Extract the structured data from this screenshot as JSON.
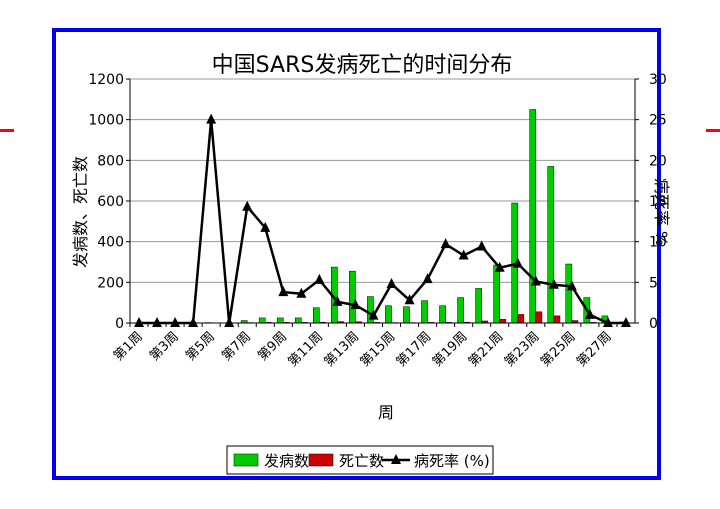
{
  "chart_data": {
    "type": "bar",
    "title": "中国SARS发病死亡的时间分布",
    "xlabel": "周",
    "ylabel": "发病数、死亡数",
    "y2label": "病死率 %",
    "ylim": [
      0,
      1200
    ],
    "y2lim": [
      0,
      30
    ],
    "yticks": [
      "0",
      "200",
      "400",
      "600",
      "800",
      "1000",
      "1200"
    ],
    "y2ticks": [
      "0",
      "5",
      "10",
      "15",
      "20",
      "25",
      "30"
    ],
    "categories": [
      "第1周",
      "第2周",
      "第3周",
      "第4周",
      "第5周",
      "第6周",
      "第7周",
      "第8周",
      "第9周",
      "第10周",
      "第11周",
      "第12周",
      "第13周",
      "第14周",
      "第15周",
      "第16周",
      "第17周",
      "第18周",
      "第19周",
      "第20周",
      "第21周",
      "第22周",
      "第23周",
      "第24周",
      "第25周",
      "第26周",
      "第27周",
      "第28周"
    ],
    "xtick_labels": [
      "第1周",
      "第3周",
      "第5周",
      "第7周",
      "第9周",
      "第11周",
      "第13周",
      "第15周",
      "第17周",
      "第19周",
      "第21周",
      "第23周",
      "第25周",
      "第27周"
    ],
    "series": [
      {
        "name": "发病数",
        "kind": "bar",
        "color": "#00cc00",
        "axis": "left",
        "values": [
          0,
          0,
          0,
          0,
          2,
          0,
          12,
          25,
          25,
          25,
          75,
          275,
          255,
          130,
          85,
          80,
          110,
          85,
          125,
          170,
          285,
          590,
          1050,
          770,
          290,
          125,
          35,
          5
        ]
      },
      {
        "name": "死亡数",
        "kind": "bar",
        "color": "#cc0000",
        "axis": "left",
        "values": [
          0,
          0,
          0,
          0,
          1,
          0,
          2,
          3,
          3,
          3,
          4,
          7,
          6,
          3,
          2,
          2,
          3,
          3,
          4,
          10,
          18,
          42,
          55,
          35,
          12,
          3,
          1,
          0
        ]
      },
      {
        "name": "病死率 (%)",
        "kind": "line",
        "color": "#000000",
        "axis": "right",
        "values": [
          0,
          0,
          0,
          0,
          25,
          0,
          14.3,
          11.7,
          3.8,
          3.6,
          5.3,
          2.6,
          2.2,
          0.9,
          4.8,
          2.8,
          5.4,
          9.7,
          8.3,
          9.4,
          6.8,
          7.3,
          5.1,
          4.7,
          4.5,
          1.0,
          0,
          0
        ]
      }
    ],
    "legend_position": "bottom",
    "grid": "horizontal"
  }
}
